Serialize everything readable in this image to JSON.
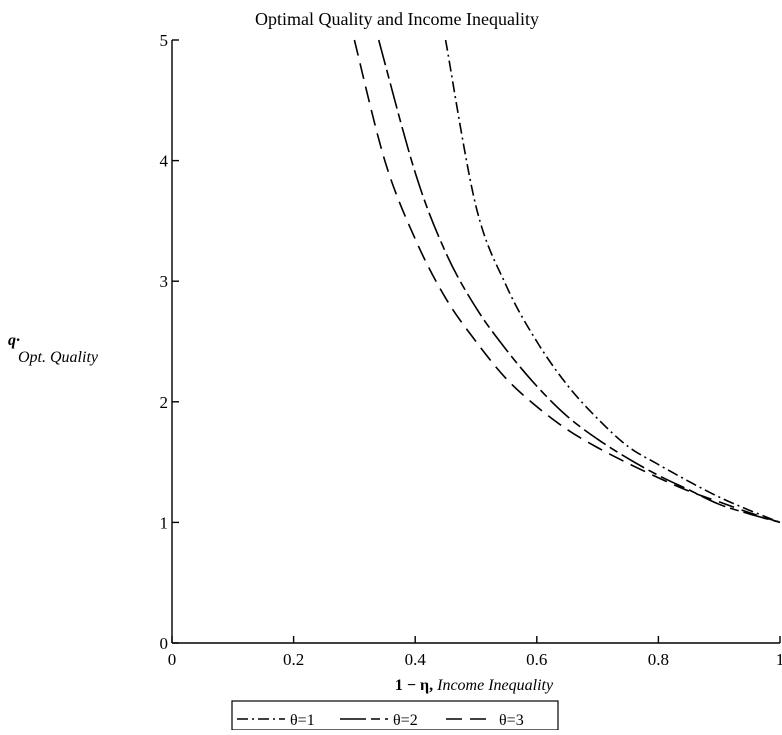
{
  "chart_data": {
    "type": "line",
    "title": "Optimal Quality and Income Inequality",
    "xlabel_main": "1 − η, ",
    "xlabel_italic": "Income Inequality",
    "ylabel_symbol": "q·",
    "ylabel_text": "Opt. Quality",
    "xlim": [
      0,
      1
    ],
    "ylim": [
      0,
      5
    ],
    "x_ticks": [
      0,
      0.2,
      0.4,
      0.6,
      0.8,
      1
    ],
    "x_tick_labels": [
      "0",
      "0.2",
      "0.4",
      "0.6",
      "0.8",
      "1"
    ],
    "y_ticks": [
      0,
      1,
      2,
      3,
      4,
      5
    ],
    "y_tick_labels": [
      "0",
      "1",
      "2",
      "3",
      "4",
      "5"
    ],
    "grid": false,
    "legend_position": "bottom",
    "series": [
      {
        "name": "θ=1",
        "dash": "dash-dot",
        "x": [
          0.45,
          0.5,
          0.55,
          0.6,
          0.65,
          0.7,
          0.75,
          0.8,
          0.85,
          0.9,
          0.95,
          1.0
        ],
        "y": [
          5.0,
          3.62,
          2.96,
          2.5,
          2.14,
          1.86,
          1.63,
          1.48,
          1.34,
          1.21,
          1.1,
          1.0
        ]
      },
      {
        "name": "θ=2",
        "dash": "long-short",
        "x": [
          0.34,
          0.4,
          0.45,
          0.5,
          0.55,
          0.6,
          0.65,
          0.7,
          0.75,
          0.8,
          0.85,
          0.9,
          0.95,
          1.0
        ],
        "y": [
          5.0,
          3.9,
          3.24,
          2.78,
          2.43,
          2.13,
          1.88,
          1.69,
          1.53,
          1.39,
          1.27,
          1.15,
          1.07,
          1.0
        ]
      },
      {
        "name": "θ=3",
        "dash": "dash",
        "x": [
          0.3,
          0.35,
          0.4,
          0.45,
          0.5,
          0.55,
          0.6,
          0.65,
          0.7,
          0.75,
          0.8,
          0.85,
          0.9,
          0.95,
          1.0
        ],
        "y": [
          5.0,
          4.0,
          3.35,
          2.86,
          2.5,
          2.19,
          1.96,
          1.77,
          1.62,
          1.49,
          1.37,
          1.26,
          1.17,
          1.08,
          1.0
        ]
      }
    ]
  }
}
